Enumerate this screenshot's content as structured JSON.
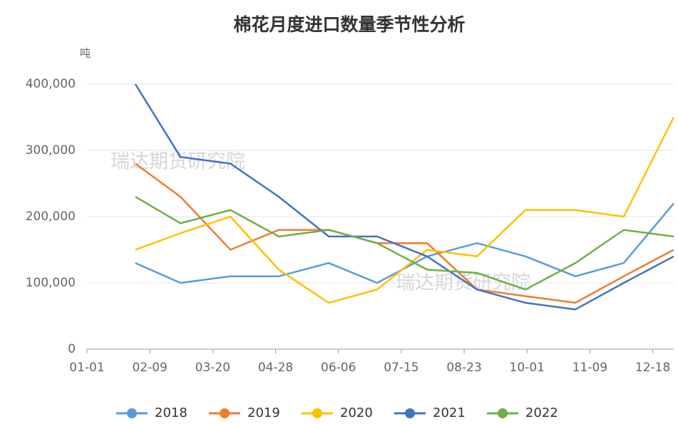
{
  "chart_data": {
    "type": "line",
    "title": "棉花月度进口数量季节性分析",
    "y_label": "吨",
    "watermarks": [
      "瑞达期货研究院",
      "瑞达期货研究院"
    ],
    "x": [
      "01-31",
      "02-28",
      "03-31",
      "04-30",
      "05-31",
      "06-30",
      "07-31",
      "08-31",
      "09-30",
      "10-31",
      "11-30",
      "12-31"
    ],
    "xlim": [
      "01-01",
      "12-31"
    ],
    "xticks": [
      "01-01",
      "02-09",
      "03-20",
      "04-28",
      "06-06",
      "07-15",
      "08-23",
      "10-01",
      "11-09",
      "12-18"
    ],
    "ylim": [
      0,
      400000
    ],
    "yticks": [
      0,
      {
        "value": 100000,
        "label": "100,000"
      },
      {
        "value": 200000,
        "label": "200,000"
      },
      {
        "value": 300000,
        "label": "300,000"
      },
      {
        "value": 400000,
        "label": "400,000"
      }
    ],
    "grid": true,
    "legend": "bottom",
    "series": [
      {
        "name": "2018",
        "color": "#5b9bd5",
        "values": [
          130000,
          100000,
          110000,
          110000,
          130000,
          100000,
          140000,
          160000,
          140000,
          110000,
          130000,
          220000
        ]
      },
      {
        "name": "2019",
        "color": "#ed7d31",
        "values": [
          280000,
          230000,
          150000,
          180000,
          180000,
          160000,
          160000,
          90000,
          80000,
          70000,
          110000,
          150000
        ]
      },
      {
        "name": "2020",
        "color": "#ffc000",
        "values": [
          150000,
          175000,
          200000,
          120000,
          70000,
          90000,
          150000,
          140000,
          210000,
          210000,
          200000,
          350000
        ]
      },
      {
        "name": "2021",
        "color": "#4472c4",
        "values": [
          400000,
          290000,
          280000,
          230000,
          170000,
          170000,
          140000,
          90000,
          70000,
          60000,
          100000,
          140000
        ]
      },
      {
        "name": "2022",
        "color": "#70ad47",
        "values": [
          230000,
          190000,
          210000,
          170000,
          180000,
          160000,
          120000,
          115000,
          90000,
          130000,
          180000,
          170000
        ]
      }
    ]
  }
}
